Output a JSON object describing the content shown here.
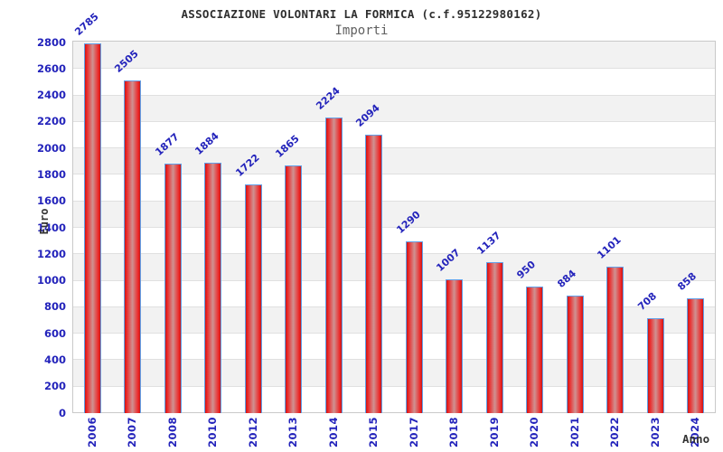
{
  "chart_data": {
    "type": "bar",
    "title": "ASSOCIAZIONE VOLONTARI LA FORMICA (c.f.95122980162)",
    "subtitle": "Importi",
    "xlabel": "Anno",
    "ylabel": "Euro",
    "categories": [
      "2006",
      "2007",
      "2008",
      "2010",
      "2012",
      "2013",
      "2014",
      "2015",
      "2017",
      "2018",
      "2019",
      "2020",
      "2021",
      "2022",
      "2023",
      "2024"
    ],
    "values": [
      2785,
      2505,
      1877,
      1884,
      1722,
      1865,
      2224,
      2094,
      1290,
      1007,
      1137,
      950,
      884,
      1101,
      708,
      858
    ],
    "ylim": [
      0,
      2800
    ],
    "ytick_step": 200,
    "legend": "none",
    "grid": "horizontal-bands",
    "colors": {
      "label_blue": "#2323bb",
      "bar_red_dark": "#b51d1d",
      "bar_red_edge": "#ee1f1f",
      "bar_red_mid": "#cf9292",
      "bar_border_blue": "#63a0e8",
      "band_gray": "#f2f2f2",
      "band_white": "#ffffff",
      "gridline": "#e0e0e0",
      "plot_border": "#c9c9c9",
      "title_color": "#2e2e2e",
      "subtitle_color": "#606060",
      "axis_title_color": "#333333"
    }
  }
}
